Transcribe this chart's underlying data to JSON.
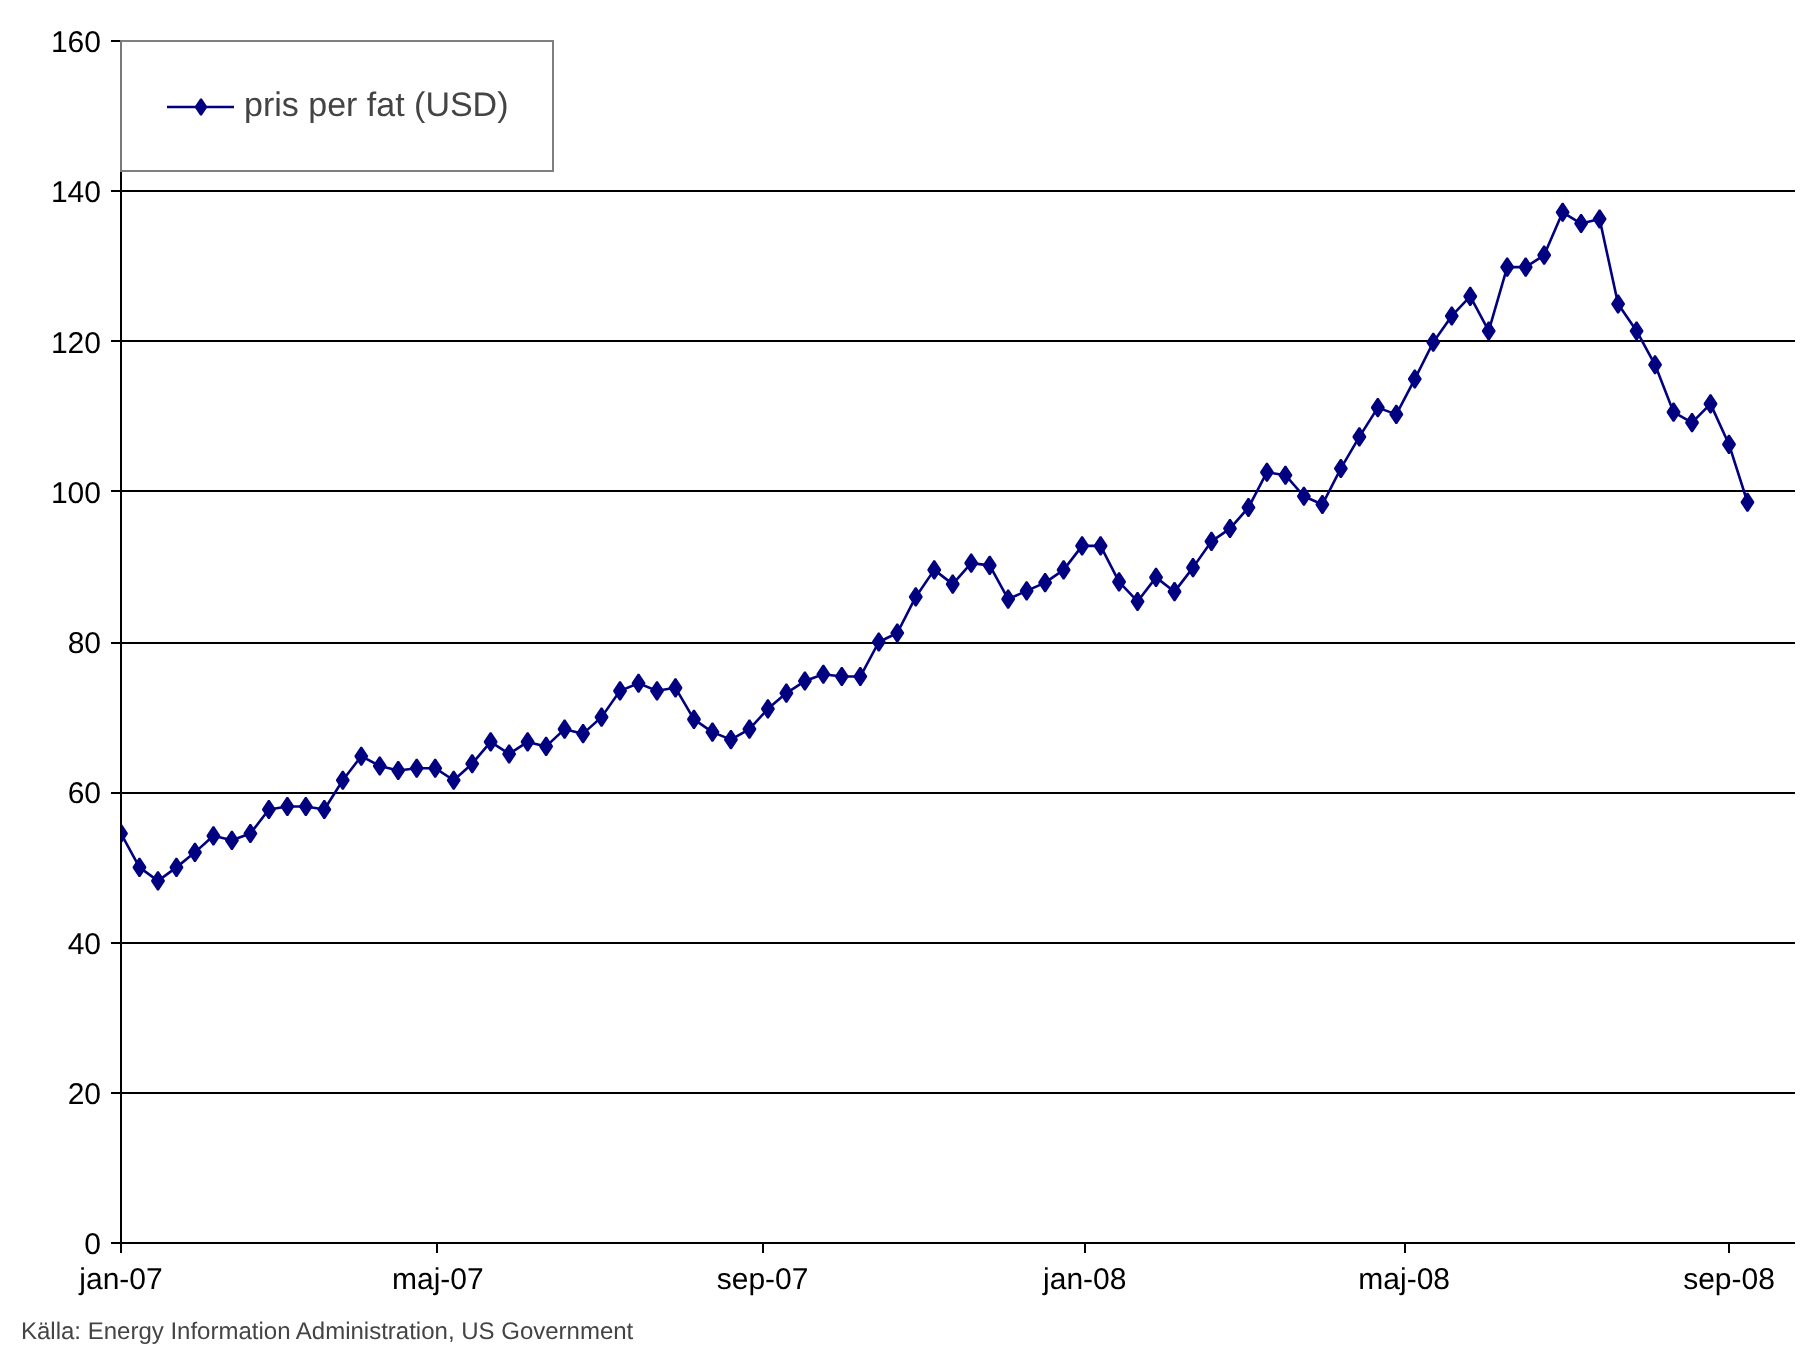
{
  "chart_data": {
    "type": "line",
    "xlim": [
      "2007-01-01",
      "2008-09-26"
    ],
    "ylim": [
      0,
      160
    ],
    "xticks": [
      {
        "value": "2007-01-01",
        "label": "jan-07"
      },
      {
        "value": "2007-05-01",
        "label": "maj-07"
      },
      {
        "value": "2007-09-01",
        "label": "sep-07"
      },
      {
        "value": "2008-01-01",
        "label": "jan-08"
      },
      {
        "value": "2008-05-01",
        "label": "maj-08"
      },
      {
        "value": "2008-09-01",
        "label": "sep-08"
      }
    ],
    "yticks": [
      0,
      20,
      40,
      60,
      80,
      100,
      120,
      140,
      160
    ],
    "grid": "y",
    "legend": "top left",
    "marker": "diamond",
    "line_style": "solid",
    "annotations": [
      "Källa: Energy Information Administration, US Government"
    ],
    "x": [
      "2007-01-01",
      "2007-01-08",
      "2007-01-15",
      "2007-01-22",
      "2007-01-29",
      "2007-02-05",
      "2007-02-12",
      "2007-02-19",
      "2007-02-26",
      "2007-03-05",
      "2007-03-12",
      "2007-03-19",
      "2007-03-26",
      "2007-04-02",
      "2007-04-09",
      "2007-04-16",
      "2007-04-23",
      "2007-04-30",
      "2007-05-07",
      "2007-05-14",
      "2007-05-21",
      "2007-05-28",
      "2007-06-04",
      "2007-06-11",
      "2007-06-18",
      "2007-06-25",
      "2007-07-02",
      "2007-07-09",
      "2007-07-16",
      "2007-07-23",
      "2007-07-30",
      "2007-08-06",
      "2007-08-13",
      "2007-08-20",
      "2007-08-27",
      "2007-09-03",
      "2007-09-10",
      "2007-09-17",
      "2007-09-24",
      "2007-10-01",
      "2007-10-08",
      "2007-10-15",
      "2007-10-22",
      "2007-10-29",
      "2007-11-05",
      "2007-11-12",
      "2007-11-19",
      "2007-11-26",
      "2007-12-03",
      "2007-12-10",
      "2007-12-17",
      "2007-12-24",
      "2007-12-31",
      "2008-01-07",
      "2008-01-14",
      "2008-01-21",
      "2008-01-28",
      "2008-02-04",
      "2008-02-11",
      "2008-02-18",
      "2008-02-25",
      "2008-03-03",
      "2008-03-10",
      "2008-03-17",
      "2008-03-24",
      "2008-03-31",
      "2008-04-07",
      "2008-04-14",
      "2008-04-21",
      "2008-04-28",
      "2008-05-05",
      "2008-05-12",
      "2008-05-19",
      "2008-05-26",
      "2008-06-02",
      "2008-06-09",
      "2008-06-16",
      "2008-06-23",
      "2008-06-30",
      "2008-07-07",
      "2008-07-14",
      "2008-07-21",
      "2008-07-28",
      "2008-08-04",
      "2008-08-11",
      "2008-08-18",
      "2008-08-25",
      "2008-09-01",
      "2008-09-08"
    ],
    "series": [
      {
        "name": "pris per fat (USD)",
        "color": "#000080",
        "values": [
          54.5,
          50.0,
          48.2,
          50.0,
          52.0,
          54.2,
          53.6,
          54.5,
          57.7,
          58.1,
          58.1,
          57.7,
          61.6,
          64.8,
          63.5,
          62.9,
          63.2,
          63.2,
          61.6,
          63.8,
          66.7,
          65.1,
          66.7,
          66.1,
          68.4,
          67.8,
          70.0,
          73.5,
          74.5,
          73.5,
          73.9,
          69.7,
          68.0,
          67.0,
          68.4,
          71.1,
          73.2,
          74.8,
          75.7,
          75.4,
          75.4,
          80.0,
          81.2,
          86.0,
          89.6,
          87.7,
          90.5,
          90.2,
          85.7,
          86.8,
          87.9,
          89.6,
          92.8,
          92.8,
          88.0,
          85.4,
          88.6,
          86.7,
          89.9,
          93.4,
          95.1,
          97.9,
          102.6,
          102.2,
          99.4,
          98.3,
          103.1,
          107.3,
          111.2,
          110.3,
          115.0,
          119.9,
          123.4,
          126.0,
          121.4,
          129.9,
          129.9,
          131.5,
          137.2,
          135.7,
          136.3,
          125.0,
          121.4,
          116.9,
          110.6,
          109.2,
          111.7,
          106.3,
          98.6
        ]
      }
    ]
  }
}
